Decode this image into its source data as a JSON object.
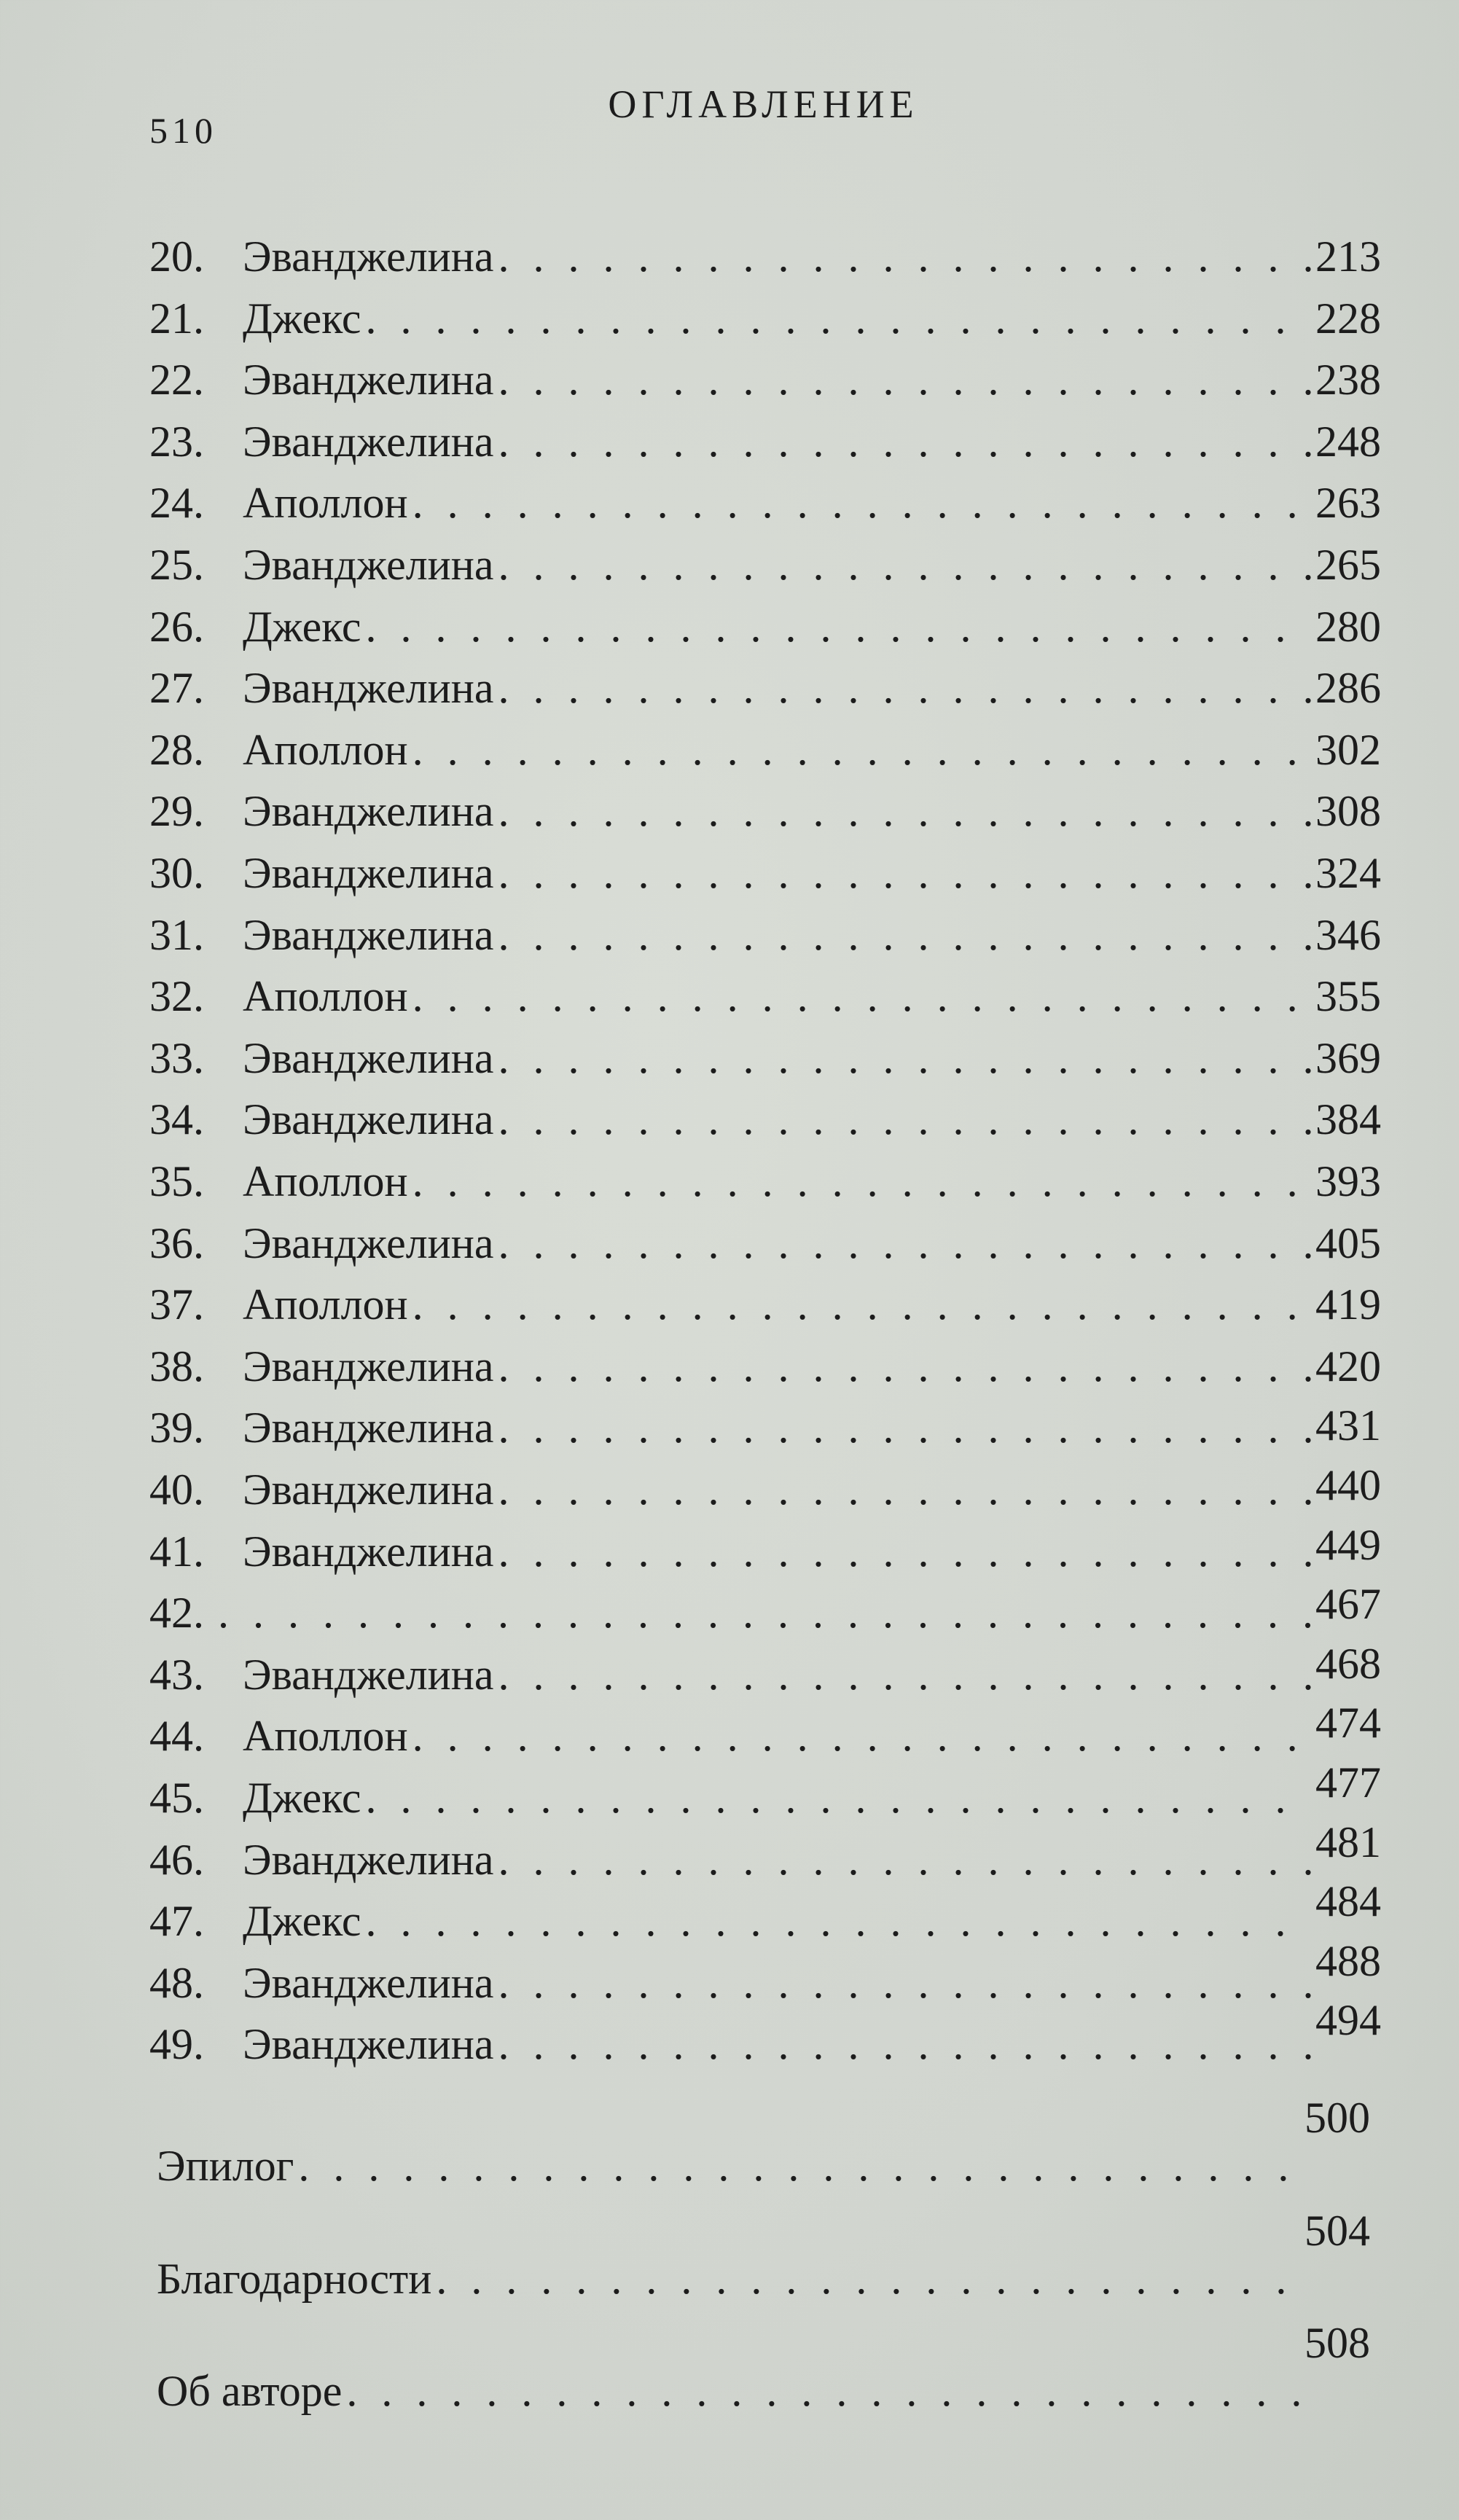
{
  "header": {
    "page_number": "510",
    "title": "ОГЛАВЛЕНИЕ"
  },
  "chapters": [
    {
      "num": "20.",
      "title": "Эванджелина",
      "page": "213"
    },
    {
      "num": "21.",
      "title": "Джекс",
      "page": "228"
    },
    {
      "num": "22.",
      "title": "Эванджелина",
      "page": "238"
    },
    {
      "num": "23.",
      "title": "Эванджелина",
      "page": "248"
    },
    {
      "num": "24.",
      "title": "Аполлон",
      "page": "263"
    },
    {
      "num": "25.",
      "title": "Эванджелина",
      "page": "265"
    },
    {
      "num": "26.",
      "title": "Джекс",
      "page": "280"
    },
    {
      "num": "27.",
      "title": "Эванджелина",
      "page": "286"
    },
    {
      "num": "28.",
      "title": "Аполлон",
      "page": "302"
    },
    {
      "num": "29.",
      "title": "Эванджелина",
      "page": "308"
    },
    {
      "num": "30.",
      "title": "Эванджелина",
      "page": "324"
    },
    {
      "num": "31.",
      "title": "Эванджелина",
      "page": "346"
    },
    {
      "num": "32.",
      "title": "Аполлон",
      "page": "355"
    },
    {
      "num": "33.",
      "title": "Эванджелина",
      "page": "369"
    },
    {
      "num": "34.",
      "title": "Эванджелина",
      "page": "384"
    },
    {
      "num": "35.",
      "title": "Аполлон",
      "page": "393"
    },
    {
      "num": "36.",
      "title": "Эванджелина",
      "page": "405"
    },
    {
      "num": "37.",
      "title": "Аполлон",
      "page": "419"
    },
    {
      "num": "38.",
      "title": "Эванджелина",
      "page": "420"
    },
    {
      "num": "39.",
      "title": "Эванджелина",
      "page": "431"
    },
    {
      "num": "40.",
      "title": "Эванджелина",
      "page": "440"
    },
    {
      "num": "41.",
      "title": "Эванджелина",
      "page": "449"
    },
    {
      "num": "42.",
      "title": "",
      "page": "467"
    },
    {
      "num": "43.",
      "title": "Эванджелина",
      "page": "468"
    },
    {
      "num": "44.",
      "title": "Аполлон",
      "page": "474"
    },
    {
      "num": "45.",
      "title": "Джекс",
      "page": "477"
    },
    {
      "num": "46.",
      "title": "Эванджелина",
      "page": "481"
    },
    {
      "num": "47.",
      "title": "Джекс",
      "page": "484"
    },
    {
      "num": "48.",
      "title": "Эванджелина",
      "page": "488"
    },
    {
      "num": "49.",
      "title": "Эванджелина",
      "page": "494"
    }
  ],
  "back_matter": [
    {
      "title": "Эпилог",
      "page": "500"
    },
    {
      "title": "Благодарности",
      "page": "504"
    },
    {
      "title": "Об авторе",
      "page": "508"
    }
  ]
}
